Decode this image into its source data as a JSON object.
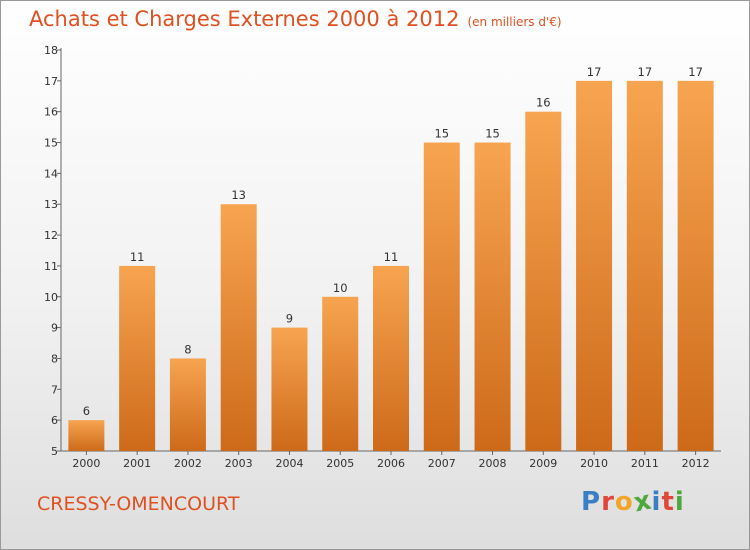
{
  "header": {
    "title": "Achats et Charges Externes 2000 à 2012",
    "subtitle": "(en milliers d'€)"
  },
  "footer": {
    "commune": "CRESSY-OMENCOURT",
    "logo_letters": [
      {
        "char": "P",
        "color": "#3a7fc4"
      },
      {
        "char": "r",
        "color": "#e0473a"
      },
      {
        "char": "o",
        "color": "#f2a526"
      },
      {
        "char": "x",
        "color": "#4fa83d"
      },
      {
        "char": "i",
        "color": "#3a7fc4"
      },
      {
        "char": "t",
        "color": "#e0473a"
      },
      {
        "char": "i",
        "color": "#4fa83d"
      }
    ]
  },
  "colors": {
    "bar_light": "#f7a450",
    "bar_dark": "#cd6a1a",
    "accent": "#e05020"
  },
  "chart_data": {
    "type": "bar",
    "categories": [
      "2000",
      "2001",
      "2002",
      "2003",
      "2004",
      "2005",
      "2006",
      "2007",
      "2008",
      "2009",
      "2010",
      "2011",
      "2012"
    ],
    "values": [
      6,
      11,
      8,
      13,
      9,
      10,
      11,
      15,
      15,
      16,
      17,
      17,
      17
    ],
    "title": "Achats et Charges Externes 2000 à 2012",
    "xlabel": "",
    "ylabel": "",
    "ylim": [
      5,
      18
    ],
    "yticks": [
      5,
      6,
      7,
      8,
      9,
      10,
      11,
      12,
      13,
      14,
      15,
      16,
      17,
      18
    ],
    "grid": false,
    "legend": "none"
  }
}
